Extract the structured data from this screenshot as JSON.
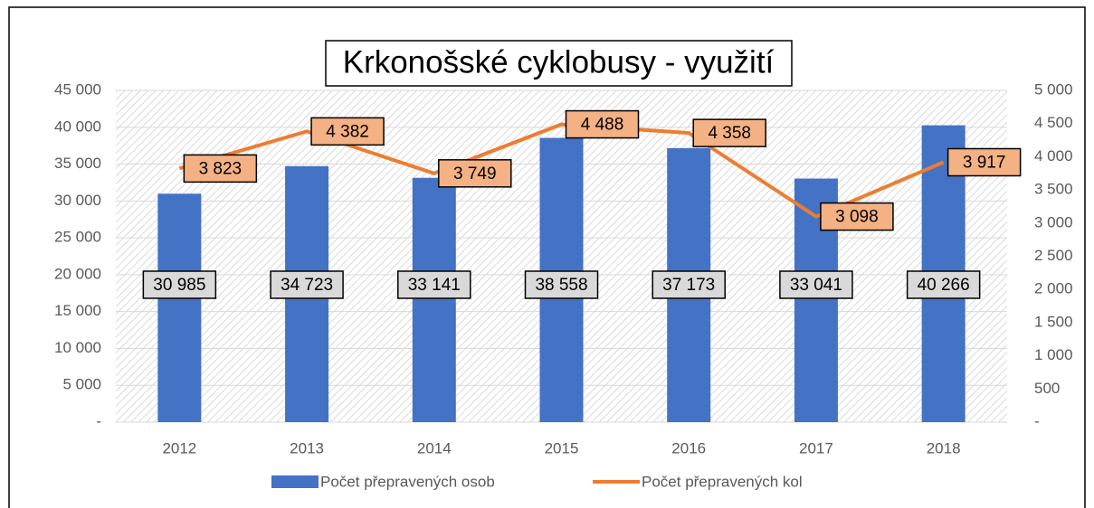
{
  "chart_data": {
    "type": "bar",
    "title": "Krkonošské cyklobusy - využití",
    "categories": [
      "2012",
      "2013",
      "2014",
      "2015",
      "2016",
      "2017",
      "2018"
    ],
    "series": [
      {
        "name": "Počet přepravených osob",
        "type": "bar",
        "color": "#4472c4",
        "values": [
          30985,
          34723,
          33141,
          38558,
          37173,
          33041,
          40266
        ],
        "value_labels": [
          "30 985",
          "34 723",
          "33 141",
          "38 558",
          "37 173",
          "33 041",
          "40 266"
        ]
      },
      {
        "name": "Počet přepravených kol",
        "type": "line",
        "axis": "y2",
        "color": "#ed7d31",
        "values": [
          3823,
          4382,
          3749,
          4488,
          4358,
          3098,
          3917
        ],
        "value_labels": [
          "3 823",
          "4 382",
          "3 749",
          "4 488",
          "4 358",
          "3 098",
          "3 917"
        ]
      }
    ],
    "ylim": [
      0,
      45000
    ],
    "yticks": [
      {
        "value": 0,
        "label": "-"
      },
      {
        "value": 5000,
        "label": "5 000"
      },
      {
        "value": 10000,
        "label": "10 000"
      },
      {
        "value": 15000,
        "label": "15 000"
      },
      {
        "value": 20000,
        "label": "20 000"
      },
      {
        "value": 25000,
        "label": "25 000"
      },
      {
        "value": 30000,
        "label": "30 000"
      },
      {
        "value": 35000,
        "label": "35 000"
      },
      {
        "value": 40000,
        "label": "40 000"
      },
      {
        "value": 45000,
        "label": "45 000"
      }
    ],
    "y2lim": [
      0,
      5000
    ],
    "y2ticks": [
      {
        "value": 0,
        "label": "-"
      },
      500,
      {
        "value": 1000,
        "label": "1 000"
      },
      {
        "value": 1500,
        "label": "1 500"
      },
      {
        "value": 2000,
        "label": "2 000"
      },
      {
        "value": 2500,
        "label": "2 500"
      },
      {
        "value": 3000,
        "label": "3 000"
      },
      {
        "value": 3500,
        "label": "3 500"
      },
      {
        "value": 4000,
        "label": "4 000"
      },
      {
        "value": 4500,
        "label": "4 500"
      },
      {
        "value": 5000,
        "label": "5 000"
      }
    ],
    "grid": true,
    "legend": "bottom"
  }
}
